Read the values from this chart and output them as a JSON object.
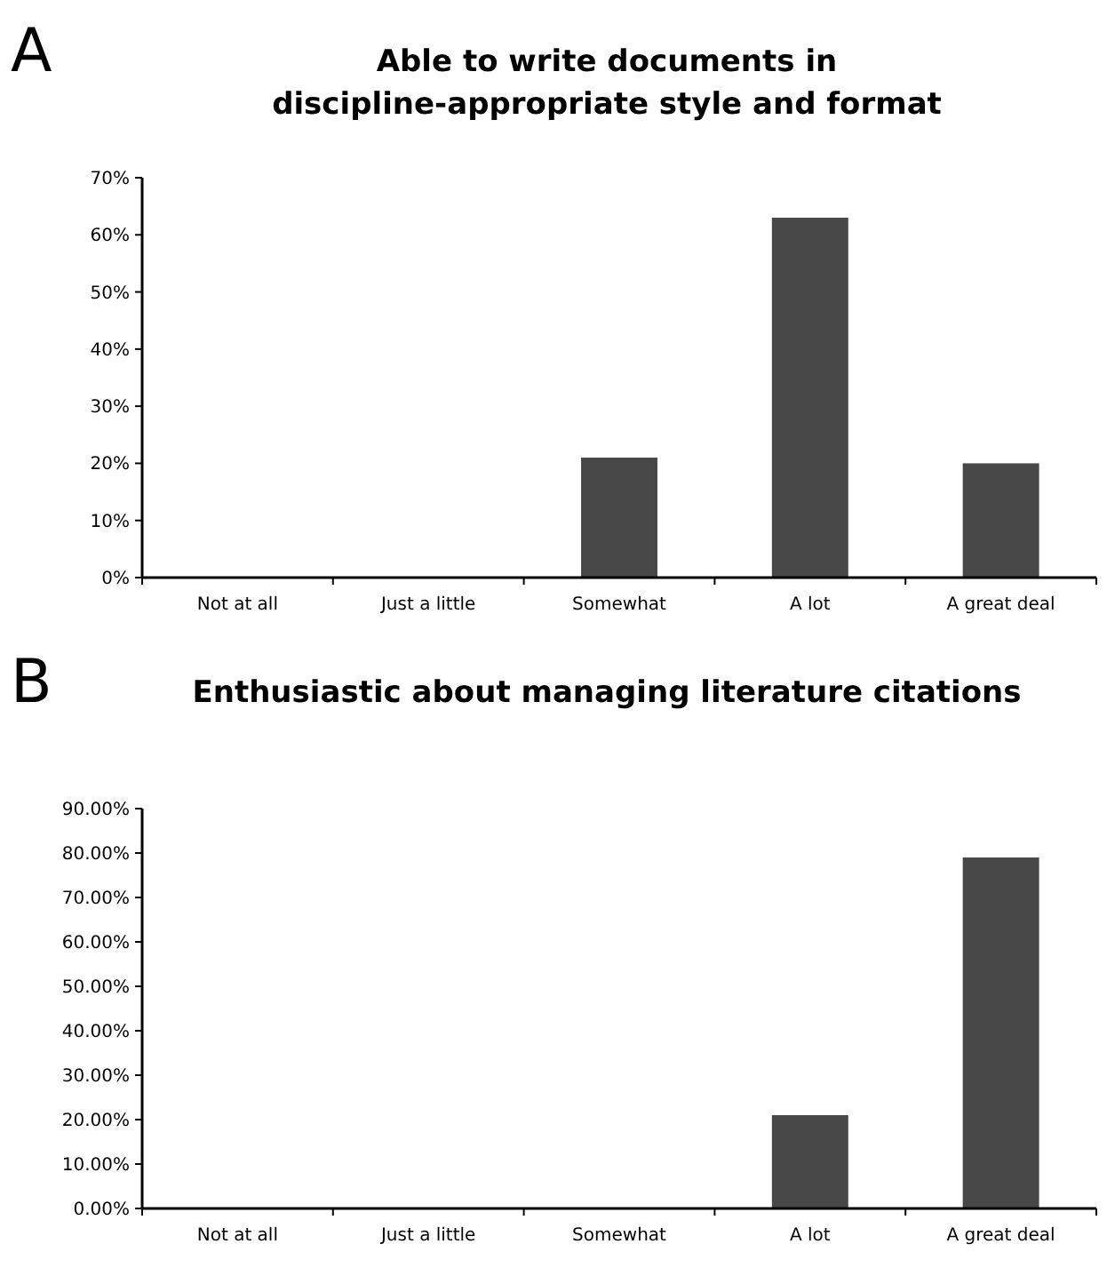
{
  "chart_data": [
    {
      "type": "bar",
      "title": "Able to write documents in discipline-appropriate style and format",
      "annotations": [
        "A"
      ],
      "categories": [
        "Not at all",
        "Just a little",
        "Somewhat",
        "A lot",
        "A great deal"
      ],
      "values": [
        0,
        0,
        21,
        63,
        20
      ],
      "color": "#474747",
      "ylim": [
        0,
        70
      ],
      "yticks": [
        {
          "value": 0,
          "label": "0%"
        },
        {
          "value": 10,
          "label": "10%"
        },
        {
          "value": 20,
          "label": "20%"
        },
        {
          "value": 30,
          "label": "30%"
        },
        {
          "value": 40,
          "label": "40%"
        },
        {
          "value": 50,
          "label": "50%"
        },
        {
          "value": 60,
          "label": "60%"
        },
        {
          "value": 70,
          "label": "70%"
        }
      ],
      "grid": false
    },
    {
      "type": "bar",
      "title": "Enthusiastic about managing literature citations",
      "annotations": [
        "B"
      ],
      "categories": [
        "Not at all",
        "Just a little",
        "Somewhat",
        "A lot",
        "A great deal"
      ],
      "values": [
        0,
        0,
        0,
        21,
        79
      ],
      "color": "#474747",
      "ylim": [
        0,
        90
      ],
      "yticks": [
        {
          "value": 0,
          "label": "0.00%"
        },
        {
          "value": 10,
          "label": "10.00%"
        },
        {
          "value": 20,
          "label": "20.00%"
        },
        {
          "value": 30,
          "label": "30.00%"
        },
        {
          "value": 40,
          "label": "40.00%"
        },
        {
          "value": 50,
          "label": "50.00%"
        },
        {
          "value": 60,
          "label": "60.00%"
        },
        {
          "value": 70,
          "label": "70.00%"
        },
        {
          "value": 80,
          "label": "80.00%"
        },
        {
          "value": 90,
          "label": "90.00%"
        }
      ],
      "grid": false
    }
  ]
}
